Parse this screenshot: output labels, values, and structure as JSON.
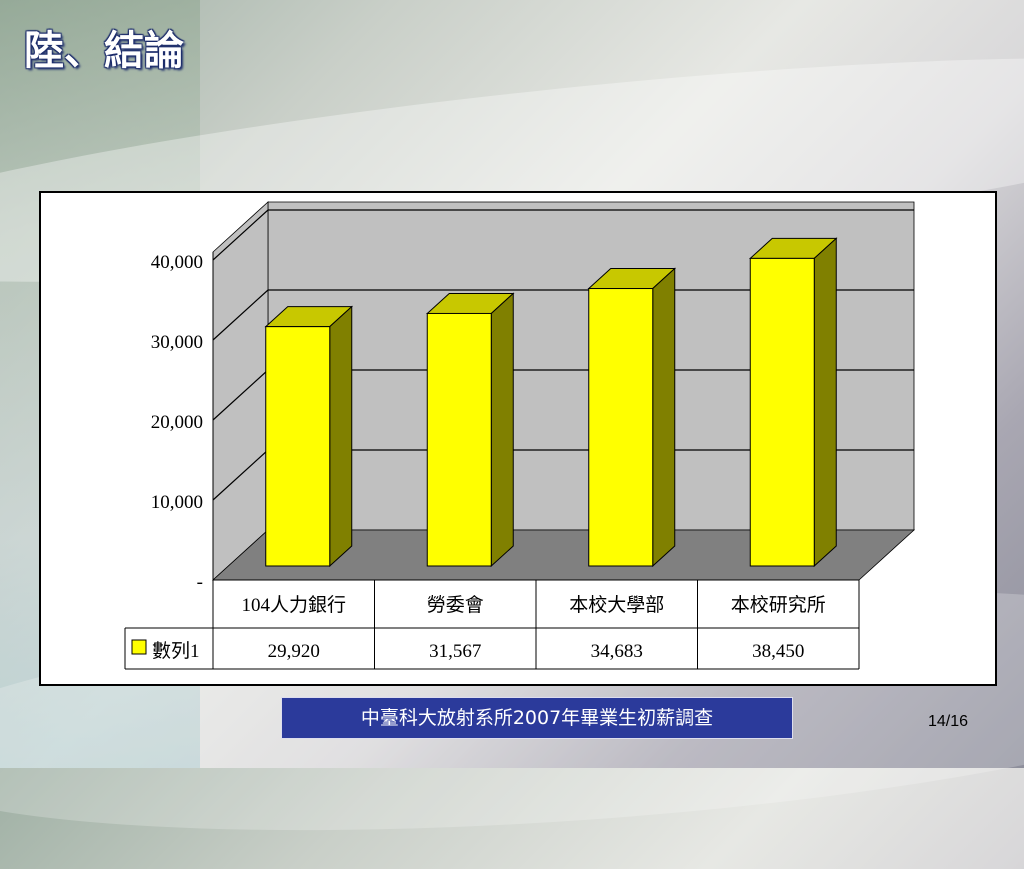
{
  "slide": {
    "title": "陸、結論",
    "caption": "中臺科大放射系所2007年畢業生初薪調查",
    "page_number": "14/16"
  },
  "colors": {
    "bar_front": "#ffff00",
    "bar_top": "#c8c800",
    "bar_side": "#808000",
    "wall": "#c0c0c0",
    "floor": "#808080",
    "caption_bg": "#2b3a9b"
  },
  "chart_data": {
    "type": "bar",
    "categories": [
      "104人力銀行",
      "勞委會",
      "本校大學部",
      "本校研究所"
    ],
    "series": [
      {
        "name": "數列1",
        "values": [
          29920,
          31567,
          34683,
          38450
        ]
      }
    ],
    "value_labels": [
      "29,920",
      "31,567",
      "34,683",
      "38,450"
    ],
    "ylim": [
      0,
      40000
    ],
    "yticks": [
      0,
      10000,
      20000,
      30000,
      40000
    ],
    "ytick_labels": [
      "-",
      "10,000",
      "20,000",
      "30,000",
      "40,000"
    ],
    "grid": true,
    "style": "3d",
    "data_table": true
  }
}
